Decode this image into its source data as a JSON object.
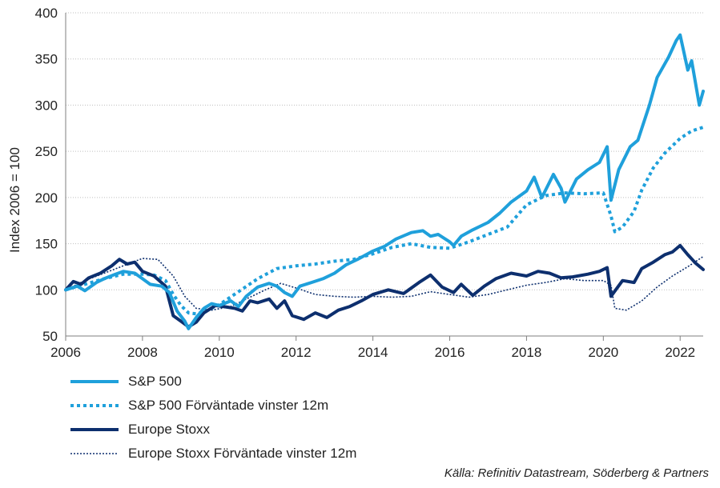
{
  "chart_data": {
    "type": "line",
    "ylabel": "Index 2006 = 100",
    "xlim": [
      2006,
      2022.6
    ],
    "ylim": [
      50,
      400
    ],
    "x_ticks": [
      "2006",
      "2008",
      "2010",
      "2012",
      "2014",
      "2016",
      "2018",
      "2020",
      "2022"
    ],
    "y_ticks": [
      "50",
      "100",
      "150",
      "200",
      "250",
      "300",
      "350",
      "400"
    ],
    "grid": "horizontal dotted",
    "legend_position": "bottom-left",
    "series": [
      {
        "name": "S&P 500",
        "color": "#1FA0DB",
        "style": "solid-thick",
        "x": [
          2006.0,
          2006.3,
          2006.5,
          2006.8,
          2007.0,
          2007.3,
          2007.5,
          2007.8,
          2008.0,
          2008.2,
          2008.5,
          2008.7,
          2008.9,
          2009.1,
          2009.2,
          2009.4,
          2009.6,
          2009.8,
          2010.0,
          2010.3,
          2010.5,
          2010.7,
          2011.0,
          2011.3,
          2011.5,
          2011.7,
          2011.9,
          2012.1,
          2012.4,
          2012.7,
          2013.0,
          2013.3,
          2013.6,
          2014.0,
          2014.3,
          2014.6,
          2015.0,
          2015.3,
          2015.5,
          2015.7,
          2016.0,
          2016.1,
          2016.3,
          2016.6,
          2017.0,
          2017.3,
          2017.6,
          2018.0,
          2018.2,
          2018.4,
          2018.7,
          2018.9,
          2019.0,
          2019.3,
          2019.6,
          2019.9,
          2020.1,
          2020.2,
          2020.4,
          2020.7,
          2020.9,
          2021.2,
          2021.4,
          2021.7,
          2021.9,
          2022.0,
          2022.2,
          2022.3,
          2022.5,
          2022.6
        ],
        "values": [
          100,
          104,
          99,
          108,
          112,
          117,
          120,
          118,
          112,
          106,
          104,
          97,
          77,
          66,
          58,
          70,
          80,
          85,
          83,
          88,
          82,
          93,
          103,
          107,
          104,
          97,
          93,
          104,
          108,
          112,
          118,
          127,
          133,
          142,
          147,
          155,
          162,
          164,
          158,
          160,
          152,
          148,
          158,
          165,
          173,
          183,
          195,
          207,
          222,
          200,
          225,
          210,
          195,
          220,
          230,
          238,
          255,
          197,
          230,
          255,
          262,
          300,
          330,
          352,
          370,
          376,
          338,
          348,
          300,
          315
        ]
      },
      {
        "name": "S&P 500 Förväntade vinster 12m",
        "color": "#1FA0DB",
        "style": "dotted-thick",
        "x": [
          2006.0,
          2006.5,
          2007.0,
          2007.5,
          2008.0,
          2008.3,
          2008.6,
          2008.8,
          2009.0,
          2009.2,
          2009.4,
          2009.6,
          2010.0,
          2010.5,
          2011.0,
          2011.5,
          2012.0,
          2012.5,
          2013.0,
          2013.5,
          2014.0,
          2014.5,
          2015.0,
          2015.5,
          2016.0,
          2016.5,
          2017.0,
          2017.5,
          2018.0,
          2018.5,
          2019.0,
          2019.5,
          2020.0,
          2020.2,
          2020.3,
          2020.5,
          2020.8,
          2021.0,
          2021.3,
          2021.6,
          2022.0,
          2022.3,
          2022.6
        ],
        "values": [
          100,
          106,
          112,
          117,
          117,
          116,
          110,
          95,
          83,
          75,
          74,
          76,
          84,
          98,
          112,
          123,
          126,
          128,
          131,
          133,
          139,
          146,
          150,
          146,
          145,
          152,
          160,
          168,
          192,
          202,
          205,
          204,
          205,
          180,
          163,
          168,
          185,
          208,
          232,
          248,
          264,
          272,
          276
        ]
      },
      {
        "name": "Europe Stoxx",
        "color": "#0D2F6E",
        "style": "solid-thick",
        "x": [
          2006.0,
          2006.2,
          2006.4,
          2006.6,
          2006.9,
          2007.2,
          2007.4,
          2007.6,
          2007.8,
          2008.0,
          2008.3,
          2008.6,
          2008.8,
          2009.0,
          2009.2,
          2009.4,
          2009.6,
          2009.9,
          2010.1,
          2010.4,
          2010.6,
          2010.8,
          2011.0,
          2011.3,
          2011.5,
          2011.7,
          2011.9,
          2012.2,
          2012.5,
          2012.8,
          2013.1,
          2013.4,
          2013.7,
          2014.0,
          2014.4,
          2014.8,
          2015.2,
          2015.5,
          2015.8,
          2016.1,
          2016.3,
          2016.6,
          2016.9,
          2017.2,
          2017.6,
          2018.0,
          2018.3,
          2018.6,
          2018.9,
          2019.2,
          2019.6,
          2019.9,
          2020.1,
          2020.2,
          2020.5,
          2020.8,
          2021.0,
          2021.3,
          2021.6,
          2021.8,
          2022.0,
          2022.2,
          2022.4,
          2022.6
        ],
        "values": [
          100,
          109,
          106,
          113,
          118,
          126,
          133,
          128,
          130,
          120,
          115,
          104,
          72,
          66,
          60,
          65,
          75,
          83,
          82,
          80,
          77,
          88,
          86,
          90,
          80,
          88,
          72,
          68,
          75,
          70,
          78,
          82,
          88,
          95,
          100,
          96,
          108,
          116,
          103,
          97,
          106,
          94,
          104,
          112,
          118,
          115,
          120,
          118,
          113,
          114,
          117,
          120,
          124,
          93,
          110,
          108,
          123,
          130,
          138,
          141,
          148,
          138,
          129,
          122
        ]
      },
      {
        "name": "Europe Stoxx Förväntade vinster 12m",
        "color": "#0D2F6E",
        "style": "dotted-thin",
        "x": [
          2006.0,
          2006.5,
          2007.0,
          2007.5,
          2008.0,
          2008.4,
          2008.8,
          2009.1,
          2009.4,
          2009.8,
          2010.3,
          2010.8,
          2011.2,
          2011.6,
          2012.0,
          2012.5,
          2013.0,
          2013.5,
          2014.0,
          2014.5,
          2015.0,
          2015.5,
          2016.0,
          2016.5,
          2017.0,
          2017.5,
          2018.0,
          2018.5,
          2019.0,
          2019.5,
          2020.0,
          2020.2,
          2020.3,
          2020.6,
          2021.0,
          2021.4,
          2021.8,
          2022.2,
          2022.6
        ],
        "values": [
          100,
          110,
          118,
          126,
          134,
          133,
          115,
          93,
          80,
          78,
          82,
          92,
          100,
          107,
          102,
          95,
          93,
          92,
          93,
          92,
          93,
          98,
          95,
          92,
          95,
          100,
          105,
          108,
          112,
          110,
          110,
          105,
          80,
          78,
          88,
          103,
          115,
          125,
          136
        ]
      }
    ],
    "source": "Källa: Refinitiv Datastream, Söderberg & Partners"
  }
}
